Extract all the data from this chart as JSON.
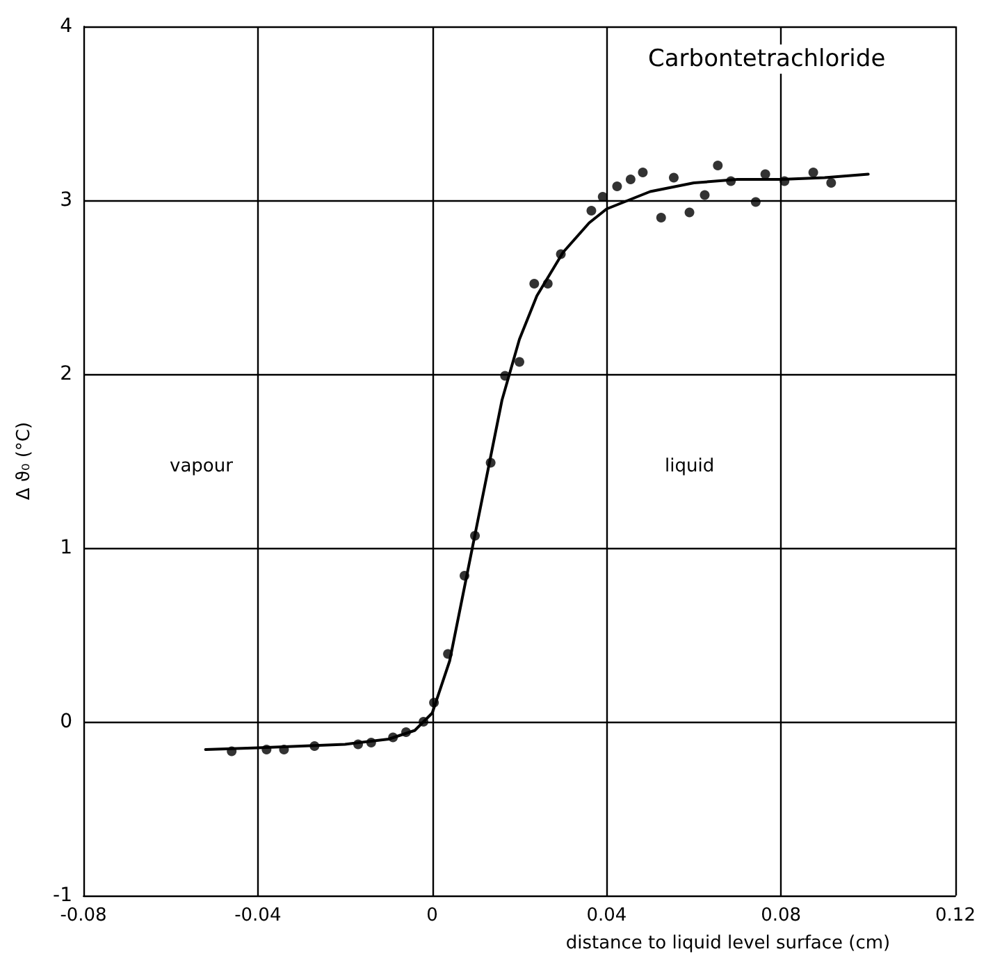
{
  "chart_data": {
    "type": "scatter",
    "title": "Carbontetrachloride",
    "xlabel": "distance to liquid level surface (cm)",
    "ylabel": "Δ ϑ₀ (°C)",
    "annotations": [
      "vapour",
      "liquid"
    ],
    "xlim": [
      -0.08,
      0.12
    ],
    "xticks": [
      -0.08,
      -0.04,
      0,
      0.04,
      0.08,
      0.12
    ],
    "ylim": [
      -1,
      4
    ],
    "yticks": [
      -1,
      0,
      1,
      2,
      3,
      4
    ],
    "grid": true,
    "marker": "circle",
    "series": [
      {
        "color": "#000000",
        "x": [
          -0.046,
          -0.038,
          -0.034,
          -0.027,
          -0.017,
          -0.014,
          -0.009,
          -0.006,
          -0.002,
          0.0004,
          0.0036,
          0.0074,
          0.0098,
          0.0134,
          0.0167,
          0.02,
          0.0234,
          0.0265,
          0.0295,
          0.0365,
          0.0391,
          0.0424,
          0.0455,
          0.0483,
          0.0525,
          0.0554,
          0.059,
          0.0625,
          0.0655,
          0.0685,
          0.0742,
          0.0764,
          0.0808,
          0.0874,
          0.0915
        ],
        "values": [
          -0.17,
          -0.16,
          -0.16,
          -0.14,
          -0.13,
          -0.12,
          -0.09,
          -0.06,
          0.0,
          0.11,
          0.39,
          0.84,
          1.07,
          1.49,
          1.99,
          2.07,
          2.52,
          2.52,
          2.69,
          2.94,
          3.02,
          3.08,
          3.12,
          3.16,
          2.9,
          3.13,
          2.93,
          3.03,
          3.2,
          3.11,
          2.99,
          3.15,
          3.11,
          3.16,
          3.1
        ]
      },
      {
        "type": "line",
        "color": "#000000",
        "marker": "none",
        "line_style": "solid",
        "x": [
          -0.052,
          -0.04,
          -0.02,
          -0.01,
          -0.004,
          0,
          0.004,
          0.008,
          0.012,
          0.016,
          0.02,
          0.024,
          0.03,
          0.036,
          0.04,
          0.05,
          0.06,
          0.07,
          0.08,
          0.09,
          0.1
        ],
        "values": [
          -0.16,
          -0.15,
          -0.13,
          -0.1,
          -0.05,
          0.05,
          0.35,
          0.85,
          1.35,
          1.85,
          2.2,
          2.45,
          2.7,
          2.87,
          2.95,
          3.05,
          3.1,
          3.12,
          3.12,
          3.13,
          3.15
        ]
      }
    ]
  }
}
